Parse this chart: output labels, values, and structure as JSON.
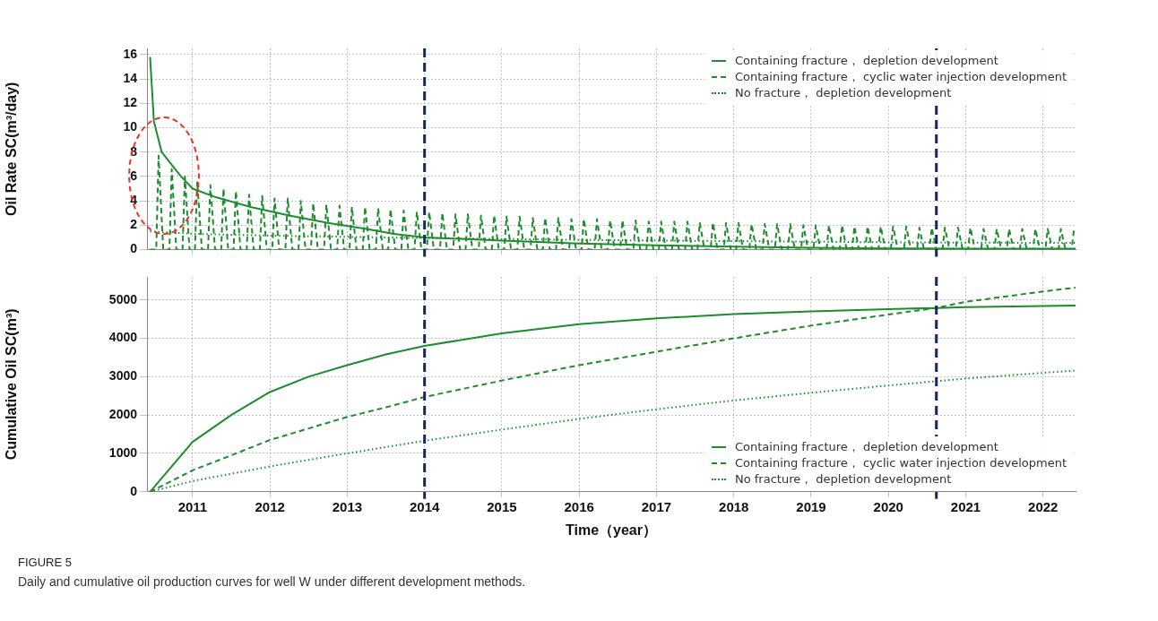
{
  "chart_data": [
    {
      "type": "line",
      "ylabel": "Oil Rate SC(m³/day)",
      "xlim": [
        2010.41,
        2022.42
      ],
      "xticks": [
        2011,
        2012,
        2013,
        2014,
        2015,
        2016,
        2017,
        2018,
        2019,
        2020,
        2021,
        2022
      ],
      "ylim": [
        0,
        16.5
      ],
      "yticks": [
        0,
        2,
        4,
        6,
        8,
        10,
        12,
        14,
        16
      ],
      "grid": true,
      "legend": "top right",
      "tick_labels": "y",
      "ref_lines": [
        {
          "axis": "x",
          "value": 2014,
          "color": "#14285a",
          "line_style": "dashed"
        },
        {
          "axis": "x",
          "value": 2020.62,
          "color": "#14285a",
          "line_style": "dashed"
        }
      ],
      "series": [
        {
          "name": "Containing fracture， depletion development",
          "color": "#1e8c2e",
          "line_style": "solid",
          "x": [
            2010.45,
            2010.5,
            2010.6,
            2010.75,
            2010.85,
            2011,
            2011.3,
            2011.75,
            2012.25,
            2012.75,
            2013.25,
            2013.6,
            2014,
            2015,
            2016,
            2017,
            2018,
            2019,
            2020,
            2021,
            2022.42
          ],
          "values": [
            15.8,
            10.5,
            8,
            6.8,
            6,
            5,
            4.3,
            3.5,
            2.8,
            2.2,
            1.7,
            1.3,
            1,
            0.75,
            0.5,
            0.35,
            0.25,
            0.15,
            0.1,
            0.09,
            0.08
          ]
        },
        {
          "name": "Containing fracture， cyclic water injection development",
          "color": "#1e8c2e",
          "line_style": "dashed",
          "x": [
            2010.45,
            2010.53,
            2010.56,
            2010.62,
            2010.7,
            2010.73,
            2010.79,
            2010.87,
            2010.9,
            2010.96,
            2011.03,
            2011.06,
            2011.12,
            2011.2,
            2011.23,
            2011.29,
            2011.37,
            2011.4,
            2011.46,
            2011.53,
            2011.56,
            2011.62,
            2011.7,
            2011.73,
            2011.79,
            2011.87,
            2011.9,
            2011.96,
            2012.03,
            2012.06,
            2012.12,
            2012.2,
            2012.23,
            2012.29,
            2012.37,
            2012.4,
            2012.46,
            2012.53,
            2012.56,
            2012.62,
            2012.7,
            2012.73,
            2012.79,
            2012.87,
            2012.9,
            2012.96,
            2013.03,
            2013.06,
            2013.12,
            2013.2,
            2013.23,
            2013.29,
            2013.37,
            2013.4,
            2013.46,
            2013.53,
            2013.56,
            2013.62,
            2013.7,
            2013.73,
            2013.79,
            2013.87,
            2013.9,
            2013.96,
            2014.03,
            2014.06,
            2014.12,
            2014.2,
            2014.23,
            2014.29,
            2014.37,
            2014.4,
            2014.46,
            2014.53,
            2014.56,
            2014.62,
            2014.7,
            2014.73,
            2014.79,
            2014.87,
            2014.9,
            2014.96,
            2015.03,
            2015.06,
            2015.12,
            2015.2,
            2015.23,
            2015.29,
            2015.37,
            2015.4,
            2015.46,
            2015.53,
            2015.56,
            2015.62,
            2015.7,
            2015.73,
            2015.79,
            2015.87,
            2015.9,
            2015.96,
            2016.03,
            2016.06,
            2016.12,
            2016.2,
            2016.23,
            2016.29,
            2016.37,
            2016.4,
            2016.46,
            2016.53,
            2016.56,
            2016.62,
            2016.7,
            2016.73,
            2016.79,
            2016.87,
            2016.9,
            2016.96,
            2017.03,
            2017.06,
            2017.12,
            2017.2,
            2017.23,
            2017.29,
            2017.37,
            2017.4,
            2017.46,
            2017.53,
            2017.56,
            2017.62,
            2017.7,
            2017.73,
            2017.79,
            2017.87,
            2017.9,
            2017.96,
            2018.03,
            2018.06,
            2018.12,
            2018.2,
            2018.23,
            2018.29,
            2018.37,
            2018.4,
            2018.46,
            2018.53,
            2018.56,
            2018.62,
            2018.7,
            2018.73,
            2018.79,
            2018.87,
            2018.9,
            2018.96,
            2019.03,
            2019.06,
            2019.12,
            2019.2,
            2019.23,
            2019.29,
            2019.37,
            2019.4,
            2019.46,
            2019.53,
            2019.56,
            2019.62,
            2019.7,
            2019.73,
            2019.79,
            2019.87,
            2019.9,
            2019.96,
            2020.03,
            2020.06,
            2020.12,
            2020.2,
            2020.23,
            2020.29,
            2020.37,
            2020.4,
            2020.46,
            2020.53,
            2020.56,
            2020.62,
            2020.7,
            2020.73,
            2020.79,
            2020.87,
            2020.9,
            2020.96,
            2021.03,
            2021.06,
            2021.12,
            2021.2,
            2021.23,
            2021.29,
            2021.37,
            2021.4,
            2021.46,
            2021.53,
            2021.56,
            2021.62,
            2021.7,
            2021.73,
            2021.79,
            2021.87,
            2021.9,
            2021.96,
            2022.03,
            2022.06,
            2022.12,
            2022.2,
            2022.23,
            2022.29,
            2022.37,
            2022.4,
            2022.42
          ],
          "values": [
            0,
            0,
            7.7,
            0,
            0,
            6.6,
            0,
            0,
            6,
            0,
            0,
            5.6,
            0,
            0,
            5.3,
            0,
            0,
            5,
            0,
            0,
            4.8,
            0,
            0,
            4.5,
            0,
            0,
            4.4,
            0,
            0,
            4.2,
            0,
            0,
            4.2,
            0,
            0,
            4,
            0,
            0,
            3.8,
            0,
            0,
            3.7,
            0,
            0,
            3.6,
            0,
            0,
            3.5,
            0,
            0,
            3.5,
            0,
            0,
            3.4,
            0,
            0,
            3.3,
            0,
            0,
            3.2,
            0,
            0,
            3.1,
            0,
            0,
            3.1,
            0,
            0,
            3,
            0,
            0,
            2.9,
            0,
            0,
            2.9,
            0,
            0,
            2.8,
            0,
            0,
            2.8,
            0,
            0,
            2.7,
            0,
            0,
            2.7,
            0,
            0,
            2.6,
            0,
            0,
            2.6,
            0,
            0,
            2.6,
            0,
            0,
            2.5,
            0,
            0,
            2.5,
            0,
            0,
            2.5,
            0,
            0,
            2.4,
            0,
            0,
            2.4,
            0,
            0,
            2.4,
            0,
            0,
            2.3,
            0,
            0,
            2.3,
            0,
            0,
            2.3,
            0,
            0,
            2.3,
            0,
            0,
            2.2,
            0,
            0,
            2.2,
            0,
            0,
            2.2,
            0,
            0,
            2.2,
            0,
            0,
            2.1,
            0,
            0,
            2.1,
            0,
            0,
            2.1,
            0,
            0,
            2.1,
            0,
            0,
            2,
            0,
            0,
            2,
            0,
            0,
            2,
            0,
            0,
            2,
            0,
            0,
            1.9,
            0,
            0,
            1.9,
            0,
            0,
            1.9,
            0,
            0,
            1.9,
            0,
            0,
            1.9,
            0,
            0,
            1.8,
            0,
            0,
            1.8,
            0,
            0,
            1.8,
            0,
            0,
            1.8,
            0,
            0,
            1.8,
            0,
            0,
            1.7,
            0,
            0,
            1.7,
            0,
            0,
            1.7,
            0,
            0,
            1.7,
            0,
            0,
            1.7,
            0,
            0,
            1.7,
            0,
            0,
            1.7,
            0,
            0,
            1.7,
            1.6
          ]
        },
        {
          "name": "No fracture， depletion development",
          "color": "#1e8c2e",
          "line_style": "dotted",
          "x": [
            2010.45,
            2011,
            2012,
            2014,
            2016,
            2018,
            2020,
            2022.42
          ],
          "values": [
            1.5,
            1.3,
            1.15,
            0.95,
            0.8,
            0.7,
            0.6,
            0.55
          ]
        }
      ]
    },
    {
      "type": "line",
      "xlabel": "Time（year）",
      "ylabel": "Cumulative Oil SC(m³)",
      "xlim": [
        2010.41,
        2022.42
      ],
      "xticks": [
        2011,
        2012,
        2013,
        2014,
        2015,
        2016,
        2017,
        2018,
        2019,
        2020,
        2021,
        2022
      ],
      "ylim": [
        0,
        5600
      ],
      "yticks": [
        0,
        1000,
        2000,
        3000,
        4000,
        5000
      ],
      "grid": true,
      "legend": "bottom right",
      "ref_lines": [
        {
          "axis": "x",
          "value": 2014,
          "color": "#14285a",
          "line_style": "dashed"
        },
        {
          "axis": "x",
          "value": 2020.62,
          "color": "#14285a",
          "line_style": "dashed"
        }
      ],
      "annotations": [
        "FIGURE 5",
        "Daily and cumulative oil production curves for well W under different development methods."
      ],
      "series": [
        {
          "name": "Containing fracture， depletion development",
          "color": "#1e8c2e",
          "line_style": "solid",
          "x": [
            2010.45,
            2011,
            2011.5,
            2012,
            2012.5,
            2013,
            2013.5,
            2014,
            2015,
            2016,
            2017,
            2018,
            2019,
            2020,
            2020.62,
            2021,
            2022,
            2022.42
          ],
          "values": [
            0,
            1300,
            2000,
            2600,
            3000,
            3300,
            3580,
            3800,
            4130,
            4370,
            4520,
            4630,
            4700,
            4760,
            4790,
            4810,
            4840,
            4850
          ]
        },
        {
          "name": "Containing fracture， cyclic water injection development",
          "color": "#1e8c2e",
          "line_style": "dashed",
          "x": [
            2010.45,
            2011,
            2011.5,
            2012,
            2012.5,
            2013,
            2013.5,
            2014,
            2015,
            2016,
            2017,
            2018,
            2019,
            2020,
            2020.62,
            2021,
            2022,
            2022.42
          ],
          "values": [
            0,
            560,
            950,
            1350,
            1650,
            1950,
            2200,
            2470,
            2900,
            3300,
            3650,
            4000,
            4330,
            4620,
            4790,
            4950,
            5220,
            5320
          ]
        },
        {
          "name": "No fracture， depletion development",
          "color": "#1e8c2e",
          "line_style": "dotted",
          "x": [
            2010.45,
            2011,
            2012,
            2013,
            2014,
            2015,
            2016,
            2017,
            2018,
            2019,
            2020,
            2021,
            2022,
            2022.42
          ],
          "values": [
            0,
            280,
            660,
            1000,
            1330,
            1620,
            1900,
            2150,
            2380,
            2580,
            2770,
            2950,
            3100,
            3160
          ]
        }
      ]
    }
  ]
}
